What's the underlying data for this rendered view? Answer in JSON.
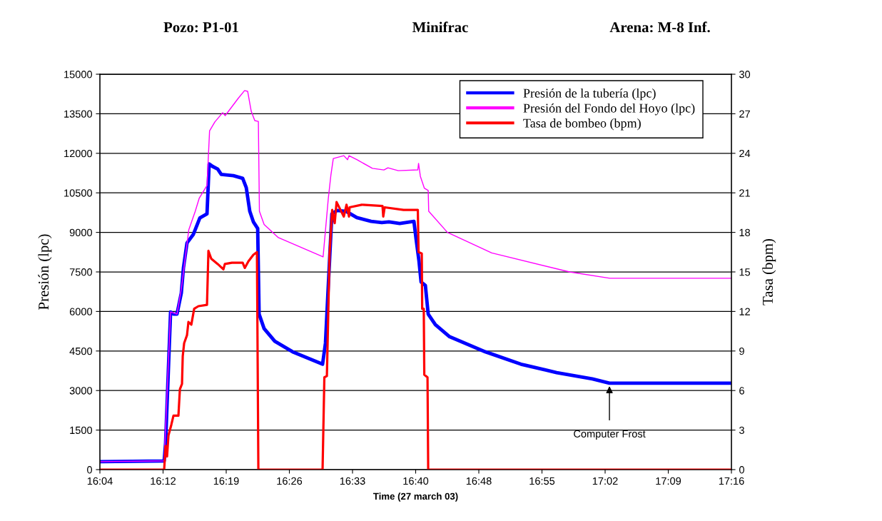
{
  "chart_data": {
    "type": "line",
    "title": "Minifrac",
    "xlabel": "Time (27 march 03)",
    "ylabel": "Presión (lpc)",
    "y2label": "Tasa (bpm)",
    "annotations": [
      "Pozo: P1-01",
      "Arena: M-8 Inf.",
      {
        "text": "Computer Frost",
        "x": 17.0415,
        "y": 3280
      }
    ],
    "xlim": [
      16.0733,
      17.2733
    ],
    "xticks": [
      {
        "value": 16.0733,
        "label": "16:04"
      },
      {
        "value": 16.1933,
        "label": "16:12"
      },
      {
        "value": 16.3133,
        "label": "16:19"
      },
      {
        "value": 16.4333,
        "label": "16:26"
      },
      {
        "value": 16.5533,
        "label": "16:33"
      },
      {
        "value": 16.6733,
        "label": "16:40"
      },
      {
        "value": 16.7933,
        "label": "16:48"
      },
      {
        "value": 16.9133,
        "label": "16:55"
      },
      {
        "value": 17.0333,
        "label": "17:02"
      },
      {
        "value": 17.1533,
        "label": "17:09"
      },
      {
        "value": 17.2733,
        "label": "17:16"
      }
    ],
    "ylim": [
      0,
      15000
    ],
    "yticks": [
      0,
      1500,
      3000,
      4500,
      6000,
      7500,
      9000,
      10500,
      12000,
      13500,
      15000
    ],
    "y2lim": [
      0,
      30
    ],
    "y2ticks": [
      0,
      3,
      6,
      9,
      12,
      15,
      18,
      21,
      24,
      27,
      30
    ],
    "grid": "y",
    "legend": "top right",
    "series": [
      {
        "name": "Presión de la tubería (lpc)",
        "color": "#0000ff",
        "x": [
          16.0733,
          16.1954,
          16.1981,
          16.2076,
          16.2131,
          16.2198,
          16.2239,
          16.228,
          16.232,
          16.2388,
          16.251,
          16.2632,
          16.2768,
          16.2809,
          16.2876,
          16.2971,
          16.3039,
          16.327,
          16.3446,
          16.3514,
          16.3581,
          16.3649,
          16.3731,
          16.3758,
          16.3853,
          16.4056,
          16.4395,
          16.4964,
          16.5019,
          16.5046,
          16.51,
          16.5141,
          16.5236,
          16.5412,
          16.5615,
          16.5886,
          16.609,
          16.6225,
          16.6429,
          16.67,
          16.6741,
          16.6795,
          16.6836,
          16.6917,
          16.6971,
          16.7107,
          16.7378,
          16.8056,
          16.8734,
          16.9412,
          17.009,
          17.0415,
          17.2733
        ],
        "values": [
          300,
          330,
          1000,
          5980,
          5900,
          5900,
          6300,
          6700,
          7650,
          8600,
          8930,
          9550,
          9700,
          11600,
          11500,
          11400,
          11200,
          11150,
          11050,
          10700,
          9800,
          9400,
          9150,
          5900,
          5350,
          4870,
          4470,
          4000,
          4800,
          5900,
          8070,
          9700,
          9830,
          9800,
          9560,
          9420,
          9370,
          9400,
          9340,
          9420,
          8750,
          7930,
          7120,
          6990,
          5900,
          5500,
          5040,
          4470,
          4000,
          3680,
          3440,
          3280,
          3280
        ]
      },
      {
        "name": "Presión del Fondo del Hoyo (lpc)",
        "color": "#ff00ff",
        "x": [
          16.0733,
          16.1954,
          16.2076,
          16.2198,
          16.228,
          16.2422,
          16.2545,
          16.2619,
          16.2768,
          16.2817,
          16.2917,
          16.3066,
          16.3114,
          16.3359,
          16.3482,
          16.3541,
          16.3609,
          16.3676,
          16.3744,
          16.3764,
          16.3853,
          16.4124,
          16.4974,
          16.5073,
          16.5122,
          16.5168,
          16.5368,
          16.5439,
          16.5466,
          16.5615,
          16.5911,
          16.613,
          16.6206,
          16.6402,
          16.6774,
          16.6788,
          16.6822,
          16.6897,
          16.6971,
          16.6981,
          16.7337,
          16.8178,
          16.9656,
          17.0422,
          17.2733
        ],
        "values": [
          300,
          330,
          5980,
          5900,
          6850,
          9100,
          9800,
          10290,
          10780,
          12850,
          13190,
          13540,
          13430,
          14080,
          14380,
          14350,
          13590,
          13240,
          13210,
          9800,
          9300,
          8800,
          8070,
          10290,
          11170,
          11800,
          11910,
          11760,
          11910,
          11760,
          11430,
          11370,
          11450,
          11340,
          11370,
          11620,
          11130,
          10680,
          10590,
          9800,
          9000,
          8220,
          7500,
          7260,
          7260
        ]
      },
      {
        "name": "Tasa de bombeo (bpm)",
        "color": "#ff0000",
        "axis": "y2",
        "x": [
          16.0733,
          16.1954,
          16.1981,
          16.2009,
          16.2036,
          16.209,
          16.2131,
          16.2225,
          16.2253,
          16.2293,
          16.2307,
          16.2334,
          16.2388,
          16.2415,
          16.247,
          16.2524,
          16.2605,
          16.2768,
          16.2795,
          16.2849,
          16.2971,
          16.308,
          16.3107,
          16.3242,
          16.3446,
          16.3486,
          16.3554,
          16.3649,
          16.3717,
          16.3744,
          16.4964,
          16.4998,
          16.5046,
          16.5097,
          16.5147,
          16.5195,
          16.523,
          16.5368,
          16.5419,
          16.5466,
          16.5477,
          16.571,
          16.6103,
          16.6117,
          16.6144,
          16.6503,
          16.6774,
          16.6788,
          16.6849,
          16.6857,
          16.6887,
          16.6897,
          16.6958,
          16.6971,
          17.2733
        ],
        "values": [
          0,
          0,
          1.8,
          1.0,
          2.6,
          3.4,
          4.1,
          4.1,
          6.1,
          6.5,
          8.6,
          9.6,
          10.2,
          11.2,
          11.0,
          12.2,
          12.4,
          12.5,
          16.6,
          16.0,
          15.6,
          15.2,
          15.6,
          15.7,
          15.7,
          15.3,
          15.8,
          16.3,
          16.5,
          0,
          0,
          7.0,
          7.1,
          16.4,
          19.7,
          18.7,
          20.3,
          19.2,
          20.1,
          19.2,
          19.9,
          20.1,
          20.0,
          19.2,
          19.9,
          19.7,
          19.7,
          16.5,
          16.4,
          12.2,
          12.2,
          7.2,
          7.0,
          0,
          0
        ]
      }
    ]
  }
}
